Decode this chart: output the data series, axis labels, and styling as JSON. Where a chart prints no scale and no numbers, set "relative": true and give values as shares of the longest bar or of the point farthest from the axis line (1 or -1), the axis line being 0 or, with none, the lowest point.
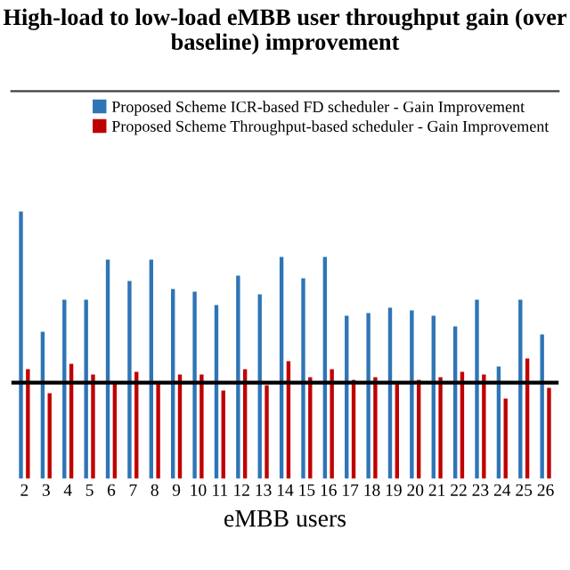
{
  "chart_data": {
    "type": "bar",
    "title": "High-load to low-load eMBB user throughput gain (over baseline) improvement",
    "xlabel": "eMBB users",
    "categories": [
      "2",
      "3",
      "4",
      "5",
      "6",
      "7",
      "8",
      "9",
      "10",
      "11",
      "12",
      "13",
      "14",
      "15",
      "16",
      "17",
      "18",
      "19",
      "20",
      "21",
      "22",
      "23",
      "24",
      "25",
      "26"
    ],
    "relative": true,
    "series": [
      {
        "name": "Proposed Scheme ICR-based FD scheduler - Gain Improvement",
        "color": "#2e75b6",
        "values": [
          1.0,
          0.55,
          0.67,
          0.67,
          0.82,
          0.74,
          0.82,
          0.71,
          0.7,
          0.65,
          0.76,
          0.69,
          0.83,
          0.75,
          0.83,
          0.61,
          0.62,
          0.64,
          0.63,
          0.61,
          0.57,
          0.67,
          0.42,
          0.67,
          0.54
        ]
      },
      {
        "name": "Proposed Scheme Throughput-based scheduler - Gain Improvement",
        "color": "#c00000",
        "values": [
          0.41,
          0.32,
          0.43,
          0.39,
          0.36,
          0.4,
          0.36,
          0.39,
          0.39,
          0.33,
          0.41,
          0.35,
          0.44,
          0.38,
          0.41,
          0.37,
          0.38,
          0.36,
          0.37,
          0.38,
          0.4,
          0.39,
          0.3,
          0.45,
          0.34
        ]
      }
    ],
    "ref_lines": [
      {
        "axis": "y",
        "value": 0.36,
        "color": "#000000"
      }
    ],
    "legend": "top right"
  }
}
